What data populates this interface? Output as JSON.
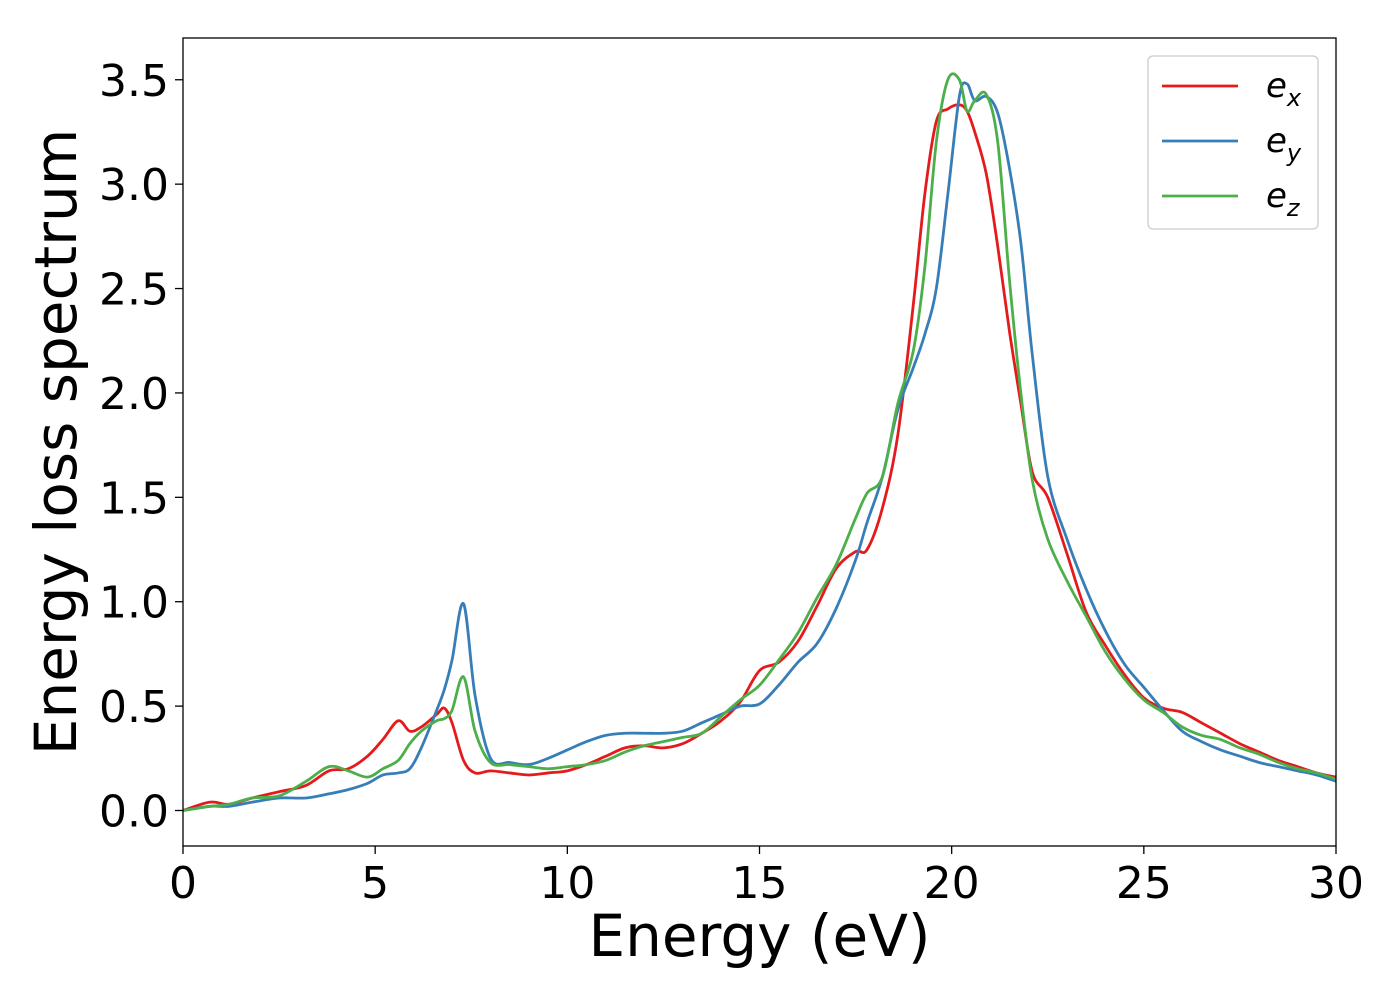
{
  "chart_data": {
    "type": "line",
    "title": "",
    "xlabel": "Energy (eV)",
    "ylabel": "Energy loss spectrum",
    "xlim": [
      0,
      30
    ],
    "ylim": [
      -0.17,
      3.7
    ],
    "xticks": [
      0,
      5,
      10,
      15,
      20,
      25,
      30
    ],
    "xtick_labels": [
      "0",
      "5",
      "10",
      "15",
      "20",
      "25",
      "30"
    ],
    "yticks": [
      0.0,
      0.5,
      1.0,
      1.5,
      2.0,
      2.5,
      3.0,
      3.5
    ],
    "ytick_labels": [
      "0.0",
      "0.5",
      "1.0",
      "1.5",
      "2.0",
      "2.5",
      "3.0",
      "3.5"
    ],
    "grid": false,
    "legend": {
      "placement": "top-right",
      "entries": [
        {
          "base": "e",
          "sub": "x"
        },
        {
          "base": "e",
          "sub": "y"
        },
        {
          "base": "e",
          "sub": "z"
        }
      ]
    },
    "series": [
      {
        "color": "#e41a1c",
        "x": [
          0,
          0.7,
          1.2,
          1.8,
          2.5,
          3.2,
          3.8,
          4.3,
          4.8,
          5.2,
          5.6,
          5.9,
          6.2,
          6.6,
          6.8,
          7.0,
          7.3,
          7.6,
          8.0,
          8.5,
          9.0,
          9.5,
          10.0,
          10.5,
          11.0,
          11.5,
          12.0,
          12.5,
          13.0,
          13.5,
          14.0,
          14.5,
          15.0,
          15.5,
          16.0,
          16.5,
          17.0,
          17.5,
          17.8,
          18.2,
          18.6,
          19.0,
          19.3,
          19.6,
          19.9,
          20.2,
          20.4,
          20.6,
          20.9,
          21.2,
          21.5,
          21.8,
          22.1,
          22.5,
          23.0,
          23.5,
          24.0,
          24.5,
          25.0,
          25.5,
          26.0,
          26.5,
          27.0,
          27.5,
          28.0,
          28.5,
          29.0,
          29.5,
          30.0
        ],
        "y": [
          0.0,
          0.04,
          0.03,
          0.06,
          0.09,
          0.12,
          0.19,
          0.2,
          0.26,
          0.34,
          0.43,
          0.38,
          0.4,
          0.46,
          0.49,
          0.42,
          0.24,
          0.18,
          0.19,
          0.18,
          0.17,
          0.18,
          0.19,
          0.22,
          0.26,
          0.3,
          0.31,
          0.3,
          0.32,
          0.37,
          0.43,
          0.52,
          0.67,
          0.71,
          0.81,
          0.98,
          1.16,
          1.24,
          1.25,
          1.45,
          1.8,
          2.42,
          2.95,
          3.3,
          3.36,
          3.38,
          3.35,
          3.25,
          3.05,
          2.7,
          2.3,
          1.95,
          1.62,
          1.5,
          1.23,
          0.95,
          0.79,
          0.65,
          0.54,
          0.49,
          0.47,
          0.42,
          0.37,
          0.32,
          0.28,
          0.24,
          0.21,
          0.18,
          0.16
        ]
      },
      {
        "color": "#377eb8",
        "x": [
          0,
          0.7,
          1.2,
          1.8,
          2.5,
          3.2,
          3.8,
          4.3,
          4.8,
          5.2,
          5.6,
          5.9,
          6.2,
          6.6,
          6.8,
          7.0,
          7.3,
          7.6,
          8.0,
          8.5,
          9.0,
          9.5,
          10.0,
          10.5,
          11.0,
          11.5,
          12.0,
          12.5,
          13.0,
          13.5,
          14.0,
          14.5,
          15.0,
          15.5,
          16.0,
          16.5,
          17.0,
          17.5,
          17.8,
          18.2,
          18.6,
          19.0,
          19.3,
          19.6,
          19.9,
          20.2,
          20.4,
          20.6,
          20.9,
          21.2,
          21.5,
          21.8,
          22.1,
          22.5,
          23.0,
          23.5,
          24.0,
          24.5,
          25.0,
          25.5,
          26.0,
          26.5,
          27.0,
          27.5,
          28.0,
          28.5,
          29.0,
          29.5,
          30.0
        ],
        "y": [
          0.0,
          0.02,
          0.02,
          0.04,
          0.06,
          0.06,
          0.08,
          0.1,
          0.13,
          0.17,
          0.18,
          0.2,
          0.3,
          0.48,
          0.58,
          0.72,
          0.99,
          0.55,
          0.25,
          0.23,
          0.22,
          0.25,
          0.29,
          0.33,
          0.36,
          0.37,
          0.37,
          0.37,
          0.38,
          0.42,
          0.46,
          0.5,
          0.51,
          0.6,
          0.71,
          0.8,
          0.97,
          1.2,
          1.38,
          1.6,
          1.92,
          2.12,
          2.28,
          2.5,
          2.95,
          3.42,
          3.48,
          3.4,
          3.42,
          3.34,
          3.08,
          2.72,
          2.18,
          1.6,
          1.3,
          1.06,
          0.86,
          0.7,
          0.59,
          0.48,
          0.38,
          0.33,
          0.29,
          0.26,
          0.23,
          0.21,
          0.19,
          0.17,
          0.14
        ]
      },
      {
        "color": "#4daf4a",
        "x": [
          0,
          0.7,
          1.2,
          1.8,
          2.5,
          3.2,
          3.8,
          4.3,
          4.8,
          5.2,
          5.6,
          5.9,
          6.2,
          6.6,
          6.8,
          7.0,
          7.3,
          7.6,
          8.0,
          8.5,
          9.0,
          9.5,
          10.0,
          10.5,
          11.0,
          11.5,
          12.0,
          12.5,
          13.0,
          13.5,
          14.0,
          14.5,
          15.0,
          15.5,
          16.0,
          16.5,
          17.0,
          17.5,
          17.8,
          18.2,
          18.6,
          19.0,
          19.3,
          19.6,
          19.9,
          20.2,
          20.4,
          20.6,
          20.9,
          21.2,
          21.5,
          21.8,
          22.1,
          22.5,
          23.0,
          23.5,
          24.0,
          24.5,
          25.0,
          25.5,
          26.0,
          26.5,
          27.0,
          27.5,
          28.0,
          28.5,
          29.0,
          29.5,
          30.0
        ],
        "y": [
          0.0,
          0.02,
          0.03,
          0.06,
          0.07,
          0.14,
          0.21,
          0.19,
          0.16,
          0.2,
          0.24,
          0.32,
          0.38,
          0.43,
          0.44,
          0.48,
          0.64,
          0.38,
          0.23,
          0.22,
          0.21,
          0.2,
          0.21,
          0.22,
          0.24,
          0.28,
          0.31,
          0.33,
          0.35,
          0.37,
          0.45,
          0.53,
          0.6,
          0.72,
          0.85,
          1.02,
          1.18,
          1.4,
          1.52,
          1.6,
          1.95,
          2.2,
          2.6,
          3.2,
          3.5,
          3.5,
          3.35,
          3.4,
          3.43,
          3.2,
          2.55,
          2.0,
          1.58,
          1.3,
          1.1,
          0.93,
          0.76,
          0.63,
          0.53,
          0.47,
          0.4,
          0.36,
          0.34,
          0.3,
          0.27,
          0.23,
          0.2,
          0.18,
          0.15
        ]
      }
    ]
  }
}
